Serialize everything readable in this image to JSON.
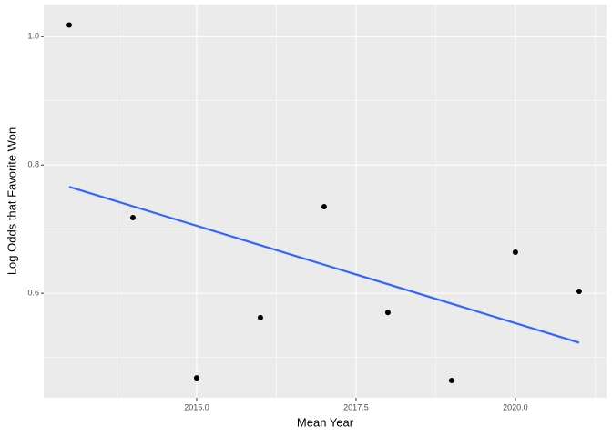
{
  "chart_data": {
    "type": "scatter",
    "x_label": "Mean Year",
    "y_label": "Log Odds that Favorite Won",
    "series": [
      {
        "kind": "points",
        "color": "#000000",
        "x": [
          2013,
          2014,
          2015,
          2016,
          2017,
          2018,
          2019,
          2020,
          2021
        ],
        "values": [
          1.018,
          0.718,
          0.468,
          0.562,
          0.735,
          0.57,
          0.464,
          0.664,
          0.603
        ]
      },
      {
        "kind": "trend",
        "color": "#3366ff",
        "x": [
          2013,
          2021
        ],
        "values": [
          0.766,
          0.523
        ]
      }
    ],
    "xlim": [
      2012.6,
      2021.43
    ],
    "ylim": [
      0.437,
      1.05
    ],
    "xticks": [
      {
        "value": 2015,
        "label": "2015.0"
      },
      2017.5,
      {
        "value": 2020,
        "label": "2020.0"
      }
    ],
    "yticks": [
      {
        "value": 1,
        "label": "1.0"
      },
      0.8,
      0.6
    ],
    "x_minor_grid": [
      2013.75,
      2016.25,
      2018.75,
      2021.25
    ],
    "y_minor_grid": [
      0.5,
      0.7,
      0.9
    ],
    "grid": true,
    "panel_color": "#ebebeb"
  }
}
